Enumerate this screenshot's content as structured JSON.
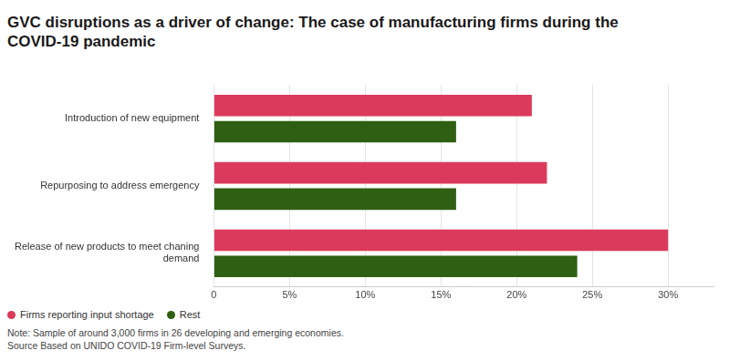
{
  "chart_data": {
    "type": "bar",
    "title": "GVC disruptions as a driver of change: The case of manufacturing firms during the COVID-19 pandemic",
    "orientation": "horizontal",
    "categories": [
      "Introduction of new equipment",
      "Repurposing to address emergency",
      "Release of new products to meet chaning demand"
    ],
    "series": [
      {
        "name": "Firms reporting input shortage",
        "color": "#dc3a5c",
        "values": [
          21,
          22,
          30
        ]
      },
      {
        "name": "Rest",
        "color": "#2f5f12",
        "values": [
          16,
          16,
          24
        ]
      }
    ],
    "xlim": [
      0,
      33
    ],
    "xticks": [
      {
        "value": 0,
        "label": "0"
      },
      {
        "value": 5,
        "label": "5%"
      },
      {
        "value": 10,
        "label": "10%"
      },
      {
        "value": 15,
        "label": "15%"
      },
      {
        "value": 20,
        "label": "20%"
      },
      {
        "value": 25,
        "label": "25%"
      },
      {
        "value": 30,
        "label": "30%"
      }
    ],
    "grid": true,
    "legend": "bottom-left",
    "notes": [
      "Note: Sample of around 3,000 firms in 26 developing and emerging economies.",
      "Source Based on UNIDO COVID-19 Firm-level Surveys."
    ]
  }
}
